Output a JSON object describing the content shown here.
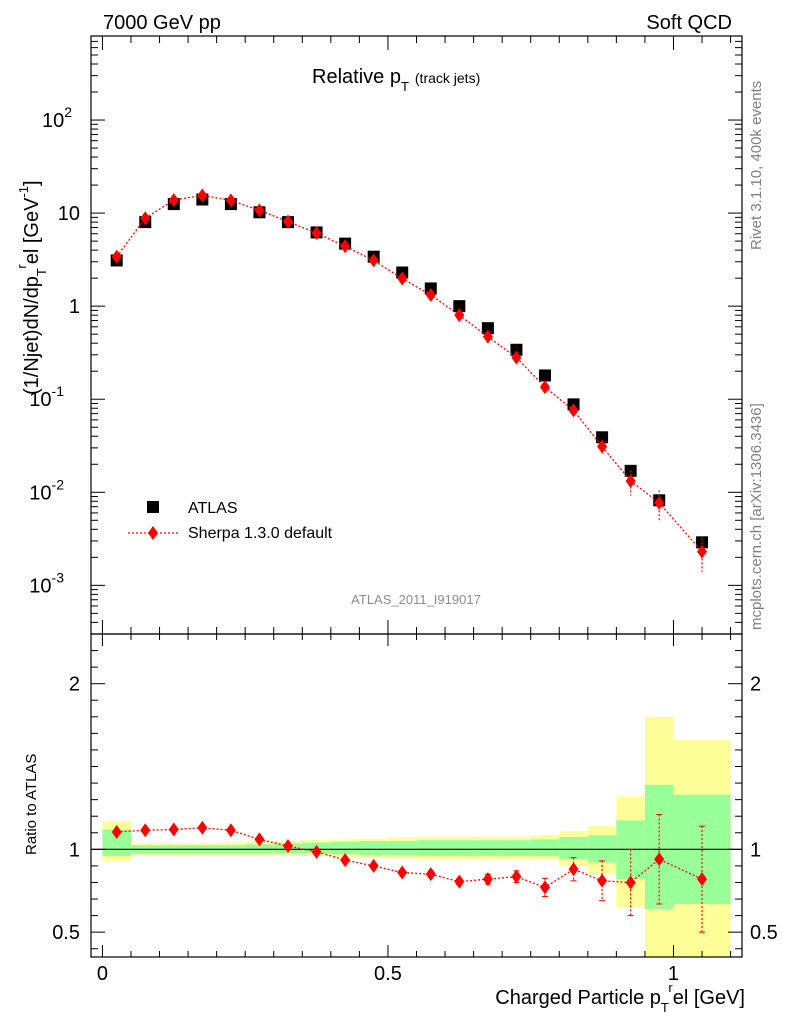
{
  "header": {
    "energy": "7000 GeV pp",
    "process": "Soft QCD",
    "analysis_id": "ATLAS_2011_I919017",
    "rivet": "Rivet 3.1.10,  400k events",
    "mcplots": "mcplots.cern.ch [arXiv:1306.3436]"
  },
  "chart_data": [
    {
      "panel": "main",
      "type": "scatter",
      "title": {
        "main": "Relative p",
        "sub": "T",
        "note": "(track jets)"
      },
      "ylabel": {
        "a": "(1/Njet)dN/dp",
        "sub": "T",
        "sup": "r",
        "b": "el [GeV",
        "sup2": "-1",
        "c": "]"
      },
      "yscale": "log",
      "ylim": [
        0.0003,
        800
      ],
      "xlim": [
        -0.02,
        1.12
      ],
      "yticks": [
        {
          "v": 0.001,
          "base": "10",
          "exp": "-3"
        },
        {
          "v": 0.01,
          "base": "10",
          "exp": "-2"
        },
        {
          "v": 0.1,
          "base": "10",
          "exp": "-1"
        },
        {
          "v": 1,
          "base": "1",
          "exp": ""
        },
        {
          "v": 10,
          "base": "10",
          "exp": ""
        },
        {
          "v": 100,
          "base": "10",
          "exp": "2"
        }
      ],
      "legend_position": "bottom-left",
      "series": [
        {
          "name": "ATLAS",
          "color": "#000000",
          "marker": "square",
          "x": [
            0.025,
            0.075,
            0.125,
            0.175,
            0.225,
            0.275,
            0.325,
            0.375,
            0.425,
            0.475,
            0.525,
            0.575,
            0.625,
            0.675,
            0.725,
            0.775,
            0.825,
            0.875,
            0.925,
            0.975,
            1.05
          ],
          "y": [
            3.1,
            8.0,
            12.5,
            14.0,
            12.5,
            10.2,
            8.0,
            6.2,
            4.7,
            3.4,
            2.3,
            1.55,
            1.0,
            0.58,
            0.34,
            0.18,
            0.088,
            0.039,
            0.017,
            0.0082,
            0.0029
          ]
        },
        {
          "name": "Sherpa 1.3.0 default",
          "color": "#ff0000",
          "marker": "diamond",
          "x": [
            0.025,
            0.075,
            0.125,
            0.175,
            0.225,
            0.275,
            0.325,
            0.375,
            0.425,
            0.475,
            0.525,
            0.575,
            0.625,
            0.675,
            0.725,
            0.775,
            0.825,
            0.875,
            0.925,
            0.975,
            1.05
          ],
          "y": [
            3.4,
            8.8,
            13.8,
            15.5,
            13.7,
            10.7,
            8.1,
            6.1,
            4.4,
            3.1,
            1.98,
            1.32,
            0.8,
            0.47,
            0.28,
            0.135,
            0.076,
            0.031,
            0.0132,
            0.0077,
            0.0023
          ],
          "err_lo": [
            0,
            0,
            0,
            0,
            0,
            0,
            0,
            0,
            0,
            0,
            0,
            0,
            0,
            0,
            0,
            0.012,
            0.008,
            0.005,
            0.004,
            0.0028,
            0.0009
          ],
          "err_hi": [
            0,
            0,
            0,
            0,
            0,
            0,
            0,
            0,
            0,
            0,
            0,
            0,
            0,
            0,
            0,
            0.012,
            0.008,
            0.005,
            0.004,
            0.0028,
            0.0009
          ]
        }
      ]
    },
    {
      "panel": "ratio",
      "type": "scatter",
      "ylabel": "Ratio to ATLAS",
      "xlabel": {
        "a": "Charged Particle p",
        "sub": "T",
        "sup": "r",
        "b": "el [GeV]"
      },
      "ylim": [
        0.35,
        2.3
      ],
      "xlim": [
        -0.02,
        1.12
      ],
      "xticks": [
        {
          "v": 0,
          "label": "0"
        },
        {
          "v": 0.5,
          "label": "0.5"
        },
        {
          "v": 1,
          "label": "1"
        }
      ],
      "yticks": [
        {
          "v": 0.5,
          "label": "0.5"
        },
        {
          "v": 1,
          "label": "1"
        },
        {
          "v": 2,
          "label": "2"
        }
      ],
      "bands": {
        "edges": [
          0,
          0.05,
          0.1,
          0.15,
          0.2,
          0.25,
          0.3,
          0.35,
          0.4,
          0.45,
          0.5,
          0.55,
          0.6,
          0.65,
          0.7,
          0.75,
          0.8,
          0.85,
          0.9,
          0.95,
          1.0,
          1.1
        ],
        "outer_color": "#ffff99",
        "inner_color": "#99ff99",
        "outer_lo": [
          0.93,
          0.965,
          0.965,
          0.965,
          0.965,
          0.965,
          0.96,
          0.96,
          0.955,
          0.95,
          0.945,
          0.94,
          0.94,
          0.94,
          0.94,
          0.94,
          0.9,
          0.85,
          0.65,
          0.35,
          0.35
        ],
        "outer_hi": [
          1.17,
          1.035,
          1.035,
          1.035,
          1.04,
          1.045,
          1.05,
          1.055,
          1.06,
          1.065,
          1.07,
          1.075,
          1.075,
          1.075,
          1.075,
          1.085,
          1.11,
          1.14,
          1.32,
          1.8,
          1.66
        ],
        "inner_lo": [
          0.96,
          0.975,
          0.975,
          0.975,
          0.975,
          0.975,
          0.975,
          0.975,
          0.97,
          0.965,
          0.965,
          0.96,
          0.96,
          0.96,
          0.96,
          0.96,
          0.94,
          0.92,
          0.82,
          0.64,
          0.67
        ],
        "inner_hi": [
          1.12,
          1.025,
          1.025,
          1.025,
          1.025,
          1.03,
          1.035,
          1.04,
          1.045,
          1.05,
          1.05,
          1.055,
          1.055,
          1.055,
          1.055,
          1.06,
          1.075,
          1.085,
          1.175,
          1.39,
          1.33
        ]
      },
      "series": [
        {
          "name": "Sherpa 1.3.0 default",
          "color": "#ff0000",
          "marker": "diamond",
          "x": [
            0.025,
            0.075,
            0.125,
            0.175,
            0.225,
            0.275,
            0.325,
            0.375,
            0.425,
            0.475,
            0.525,
            0.575,
            0.625,
            0.675,
            0.725,
            0.775,
            0.825,
            0.875,
            0.925,
            0.975,
            1.05
          ],
          "y": [
            1.105,
            1.115,
            1.12,
            1.13,
            1.115,
            1.06,
            1.02,
            0.985,
            0.935,
            0.9,
            0.86,
            0.85,
            0.805,
            0.82,
            0.835,
            0.77,
            0.88,
            0.81,
            0.8,
            0.94,
            0.82
          ],
          "err": [
            0.01,
            0.01,
            0.01,
            0.01,
            0.01,
            0.01,
            0.01,
            0.01,
            0.01,
            0.012,
            0.015,
            0.018,
            0.02,
            0.03,
            0.035,
            0.055,
            0.07,
            0.12,
            0.2,
            0.27,
            0.32
          ]
        }
      ]
    }
  ]
}
